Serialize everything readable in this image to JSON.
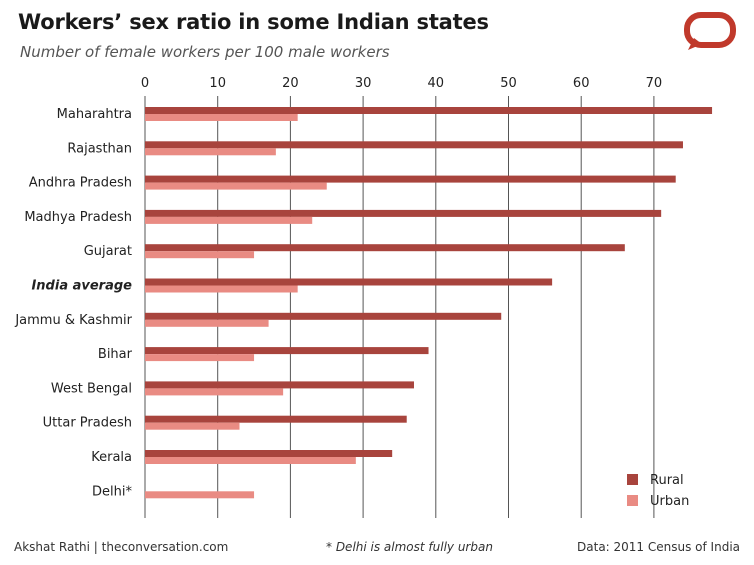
{
  "header": {
    "title": "Workers’ sex ratio in some Indian states",
    "subtitle": "Number of female workers per 100 male workers"
  },
  "logo": {
    "icon": "speech-bubble-icon",
    "color": "#c0392b"
  },
  "footer": {
    "credit": "Akshat Rathi | theconversation.com",
    "note": "* Delhi is almost fully urban",
    "source": "Data: 2011 Census of India"
  },
  "colors": {
    "rural": "#a8443d",
    "urban": "#e98b83",
    "grid": "#555555"
  },
  "chart_data": {
    "type": "bar",
    "orientation": "horizontal",
    "title": "Workers’ sex ratio in some Indian states",
    "subtitle": "Number of female workers per 100 male workers",
    "xlabel": "",
    "ylabel": "",
    "xlim": [
      0,
      78
    ],
    "xticks": [
      0,
      10,
      20,
      30,
      40,
      50,
      60,
      70
    ],
    "x_axis_position": "top",
    "grid": true,
    "legend_position": "bottom-right",
    "categories": [
      "Maharahtra",
      "Rajasthan",
      "Andhra Pradesh",
      "Madhya Pradesh",
      "Gujarat",
      "India average",
      "Jammu & Kashmir",
      "Bihar",
      "West Bengal",
      "Uttar Pradesh",
      "Kerala",
      "Delhi*"
    ],
    "highlight_category": "India average",
    "series": [
      {
        "name": "Rural",
        "color": "#a8443d",
        "values": [
          78,
          74,
          73,
          71,
          66,
          56,
          49,
          39,
          37,
          36,
          34,
          null
        ]
      },
      {
        "name": "Urban",
        "color": "#e98b83",
        "values": [
          21,
          18,
          25,
          23,
          15,
          21,
          17,
          15,
          19,
          13,
          29,
          15
        ]
      }
    ]
  }
}
